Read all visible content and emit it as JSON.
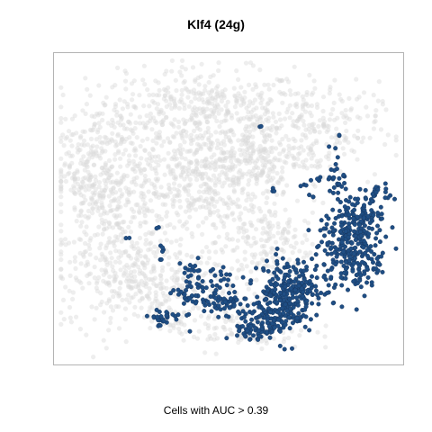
{
  "chart_data": {
    "type": "scatter",
    "title": "Klf4 (24g)",
    "caption": "Cells with AUC > 0.39",
    "xlabel": "",
    "ylabel": "",
    "axes_visible": false,
    "grid": false,
    "legend": "none",
    "xlim": [
      0,
      100
    ],
    "ylim": [
      0,
      100
    ],
    "series": [
      {
        "role": "background",
        "color": "#d9d9d9",
        "clusters": [
          {
            "cx": 43,
            "cy": 82,
            "sx": 15,
            "sy": 7,
            "n": 420
          },
          {
            "cx": 15,
            "cy": 55,
            "sx": 8,
            "sy": 17,
            "n": 500
          },
          {
            "cx": 42,
            "cy": 56,
            "sx": 12,
            "sy": 10,
            "n": 420
          },
          {
            "cx": 74,
            "cy": 76,
            "sx": 10,
            "sy": 8,
            "n": 240
          },
          {
            "cx": 55,
            "cy": 66,
            "sx": 8,
            "sy": 6,
            "n": 180
          },
          {
            "cx": 28,
            "cy": 25,
            "sx": 13,
            "sy": 7,
            "n": 320
          },
          {
            "cx": 60,
            "cy": 38,
            "sx": 7,
            "sy": 7,
            "n": 160
          },
          {
            "cx": 52,
            "cy": 11,
            "sx": 11,
            "sy": 4,
            "n": 140
          },
          {
            "cx": 6,
            "cy": 62,
            "sx": 3,
            "sy": 6,
            "n": 60
          }
        ]
      },
      {
        "role": "highlighted",
        "color": "#1f4e84",
        "clusters": [
          {
            "cx": 66,
            "cy": 22,
            "sx": 4,
            "sy": 6,
            "n": 200
          },
          {
            "cx": 62,
            "cy": 14,
            "sx": 5,
            "sy": 3,
            "n": 80
          },
          {
            "cx": 58,
            "cy": 9,
            "sx": 3,
            "sy": 2,
            "n": 40
          },
          {
            "cx": 86,
            "cy": 33,
            "sx": 4,
            "sy": 6,
            "n": 170
          },
          {
            "cx": 88,
            "cy": 48,
            "sx": 3.5,
            "sy": 4,
            "n": 80
          },
          {
            "cx": 83,
            "cy": 42,
            "sx": 5,
            "sy": 3,
            "n": 60
          },
          {
            "cx": 72,
            "cy": 24,
            "sx": 3,
            "sy": 4,
            "n": 60
          },
          {
            "cx": 48,
            "cy": 19,
            "sx": 4,
            "sy": 2,
            "n": 50
          },
          {
            "cx": 40,
            "cy": 21,
            "sx": 3,
            "sy": 2.5,
            "n": 40
          },
          {
            "cx": 31,
            "cy": 14,
            "sx": 3,
            "sy": 1.5,
            "n": 30
          },
          {
            "cx": 39,
            "cy": 29,
            "sx": 2,
            "sy": 2,
            "n": 18
          },
          {
            "cx": 47,
            "cy": 27,
            "sx": 2,
            "sy": 2,
            "n": 15
          },
          {
            "cx": 82,
            "cy": 61,
            "sx": 1.5,
            "sy": 5,
            "n": 30
          },
          {
            "cx": 95,
            "cy": 55,
            "sx": 2,
            "sy": 1.5,
            "n": 15
          },
          {
            "cx": 93,
            "cy": 48,
            "sx": 1.5,
            "sy": 2,
            "n": 12
          },
          {
            "cx": 93,
            "cy": 32,
            "sx": 1.2,
            "sy": 3,
            "n": 15
          },
          {
            "cx": 76,
            "cy": 60,
            "sx": 1,
            "sy": 1,
            "n": 6
          },
          {
            "cx": 72,
            "cy": 58,
            "sx": 0.6,
            "sy": 0.6,
            "n": 3
          },
          {
            "cx": 74,
            "cy": 54,
            "sx": 0.6,
            "sy": 0.6,
            "n": 3
          },
          {
            "cx": 63,
            "cy": 56,
            "sx": 0.6,
            "sy": 0.6,
            "n": 3
          },
          {
            "cx": 59,
            "cy": 77,
            "sx": 0.4,
            "sy": 0.4,
            "n": 2
          },
          {
            "cx": 82,
            "cy": 74,
            "sx": 0.5,
            "sy": 0.5,
            "n": 2
          },
          {
            "cx": 29,
            "cy": 44,
            "sx": 0.5,
            "sy": 0.5,
            "n": 2
          },
          {
            "cx": 31,
            "cy": 37,
            "sx": 0.8,
            "sy": 0.4,
            "n": 4
          },
          {
            "cx": 30,
            "cy": 33,
            "sx": 0.5,
            "sy": 0.3,
            "n": 2
          },
          {
            "cx": 20,
            "cy": 40,
            "sx": 0.5,
            "sy": 0.5,
            "n": 2
          }
        ]
      }
    ]
  }
}
